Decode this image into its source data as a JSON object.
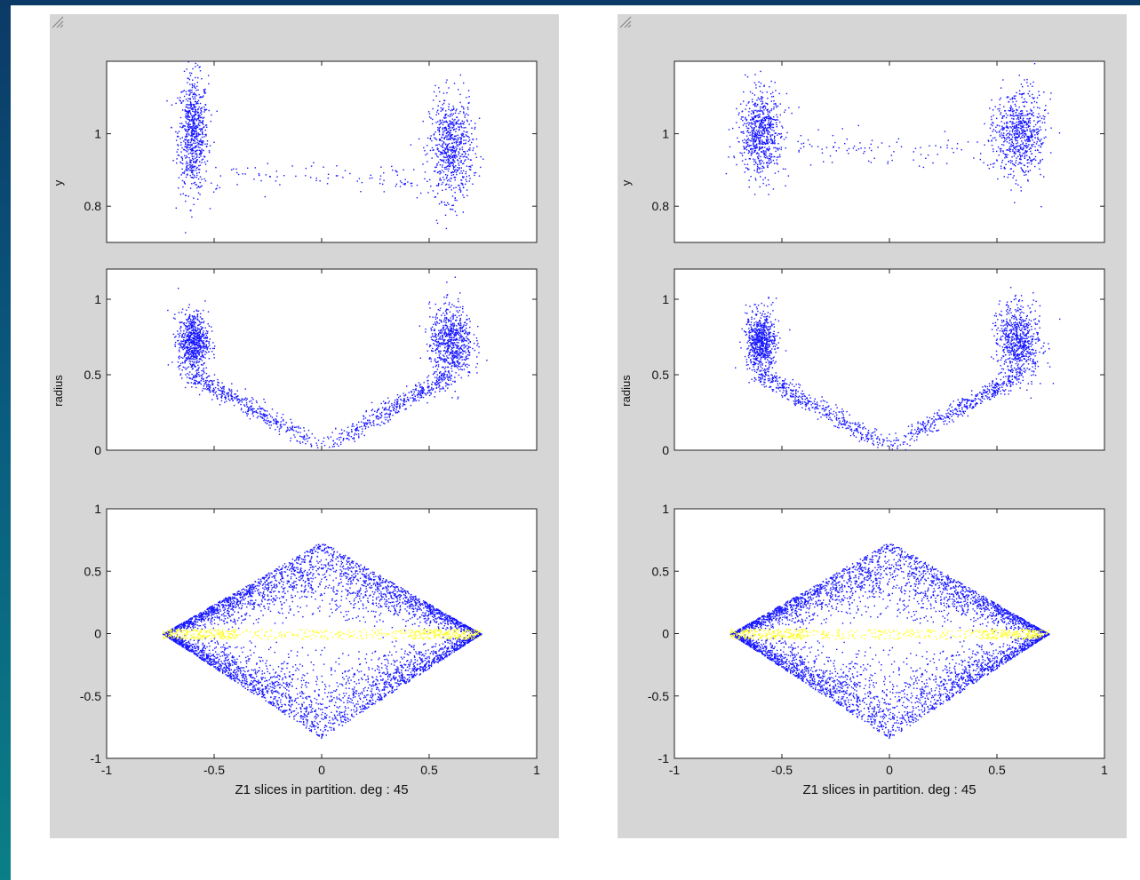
{
  "colors": {
    "series_main": "#1414ff",
    "series_highlight": "#ffff1a",
    "figure_bg": "#d6d6d6",
    "slide_bg": "#ffffff"
  },
  "chart_data": [
    {
      "panel": "left",
      "subplots": [
        {
          "type": "scatter",
          "ylabel": "y",
          "xlim": [
            -1,
            1
          ],
          "ylim": [
            0.7,
            1.2
          ],
          "yticks": [
            "0.8",
            "1"
          ],
          "series": [
            {
              "color": "#1414ff",
              "clusters": [
                {
                  "cx": -0.6,
                  "cy": 1.0,
                  "sx": 0.035,
                  "sy": 0.08
                },
                {
                  "cx": 0.6,
                  "cy": 0.96,
                  "sx": 0.05,
                  "sy": 0.07
                }
              ],
              "bridge": {
                "x": [
                  -0.5,
                  0.45
                ],
                "y": [
                  0.87,
                  0.9
                ]
              }
            }
          ]
        },
        {
          "type": "scatter",
          "ylabel": "radius",
          "xlim": [
            -1,
            1
          ],
          "ylim": [
            0,
            1.2
          ],
          "yticks": [
            "0",
            "0.5",
            "1"
          ],
          "series": [
            {
              "color": "#1414ff",
              "clusters": [
                {
                  "cx": -0.6,
                  "cy": 0.72,
                  "sx": 0.035,
                  "sy": 0.1
                },
                {
                  "cx": 0.6,
                  "cy": 0.72,
                  "sx": 0.05,
                  "sy": 0.12
                }
              ],
              "v_arms": {
                "left": [
                  -0.6,
                  0.5
                ],
                "right": [
                  0.6,
                  0.5
                ],
                "vertex": [
                  0,
                  0.02
                ]
              }
            }
          ]
        },
        {
          "type": "scatter",
          "xlabel": "Z1 slices in partition. deg : 45",
          "xlim": [
            -1,
            1
          ],
          "ylim": [
            -1,
            1
          ],
          "xticks": [
            "-1",
            "-0.5",
            "0",
            "0.5",
            "1"
          ],
          "yticks": [
            "-1",
            "-0.5",
            "0",
            "0.5",
            "1"
          ],
          "series": [
            {
              "color": "#1414ff",
              "shape": "diamond",
              "x_range": [
                -0.74,
                0.74
              ],
              "y_range": [
                -0.84,
                0.74
              ]
            },
            {
              "color": "#ffff1a",
              "shape": "band",
              "x_range": [
                -0.74,
                0.74
              ],
              "y_range": [
                -0.04,
                0.04
              ]
            }
          ]
        }
      ]
    },
    {
      "panel": "right",
      "subplots": [
        {
          "type": "scatter",
          "ylabel": "y",
          "xlim": [
            -1,
            1
          ],
          "ylim": [
            0.7,
            1.2
          ],
          "yticks": [
            "0.8",
            "1"
          ],
          "series": [
            {
              "color": "#1414ff",
              "clusters": [
                {
                  "cx": -0.6,
                  "cy": 1.0,
                  "sx": 0.05,
                  "sy": 0.06
                },
                {
                  "cx": 0.6,
                  "cy": 1.0,
                  "sx": 0.06,
                  "sy": 0.06
                }
              ],
              "bridge": {
                "x": [
                  -0.45,
                  0.45
                ],
                "y": [
                  0.95,
                  0.97
                ]
              }
            }
          ]
        },
        {
          "type": "scatter",
          "ylabel": "radius",
          "xlim": [
            -1,
            1
          ],
          "ylim": [
            0,
            1.2
          ],
          "yticks": [
            "0",
            "0.5",
            "1"
          ],
          "series": [
            {
              "color": "#1414ff",
              "clusters": [
                {
                  "cx": -0.6,
                  "cy": 0.72,
                  "sx": 0.035,
                  "sy": 0.1
                },
                {
                  "cx": 0.6,
                  "cy": 0.72,
                  "sx": 0.05,
                  "sy": 0.12
                }
              ],
              "v_arms": {
                "left": [
                  -0.6,
                  0.5
                ],
                "right": [
                  0.6,
                  0.5
                ],
                "vertex": [
                  0,
                  0.02
                ]
              }
            }
          ]
        },
        {
          "type": "scatter",
          "xlabel": "Z1 slices in partition. deg : 45",
          "xlim": [
            -1,
            1
          ],
          "ylim": [
            -1,
            1
          ],
          "xticks": [
            "-1",
            "-0.5",
            "0",
            "0.5",
            "1"
          ],
          "yticks": [
            "-1",
            "-0.5",
            "0",
            "0.5",
            "1"
          ],
          "series": [
            {
              "color": "#1414ff",
              "shape": "diamond",
              "x_range": [
                -0.74,
                0.74
              ],
              "y_range": [
                -0.84,
                0.74
              ]
            },
            {
              "color": "#ffff1a",
              "shape": "band",
              "x_range": [
                -0.74,
                0.74
              ],
              "y_range": [
                -0.04,
                0.04
              ]
            }
          ]
        }
      ]
    }
  ]
}
